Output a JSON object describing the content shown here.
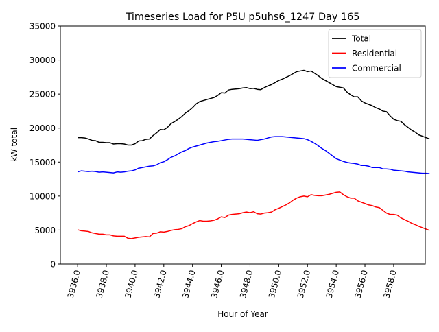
{
  "chart_data": {
    "type": "line",
    "title": "Timeseries Load for P5U p5uhs6_1247  Day 165",
    "xlabel": "Hour of Year",
    "ylabel": "kW total",
    "xlim": [
      3934.8,
      3960.2
    ],
    "ylim": [
      0,
      35000
    ],
    "xticks": [
      3936,
      3938,
      3940,
      3942,
      3944,
      3946,
      3948,
      3950,
      3952,
      3954,
      3956,
      3958
    ],
    "xtick_labels": [
      "3936.0",
      "3938.0",
      "3940.0",
      "3942.0",
      "3944.0",
      "3946.0",
      "3948.0",
      "3950.0",
      "3952.0",
      "3954.0",
      "3956.0",
      "3958.0"
    ],
    "yticks": [
      0,
      5000,
      10000,
      15000,
      20000,
      25000,
      30000,
      35000
    ],
    "ytick_labels": [
      "0",
      "5000",
      "10000",
      "15000",
      "20000",
      "25000",
      "30000",
      "35000"
    ],
    "grid": false,
    "legend_position": "top-right",
    "x_start": 3936,
    "x_step": 0.25,
    "series": [
      {
        "name": "Total",
        "color": "#000000",
        "values": [
          18600,
          18600,
          18550,
          18400,
          18200,
          18150,
          17900,
          17900,
          17850,
          17850,
          17650,
          17700,
          17700,
          17650,
          17500,
          17500,
          17700,
          18100,
          18150,
          18350,
          18400,
          18900,
          19300,
          19800,
          19750,
          20100,
          20650,
          20950,
          21300,
          21700,
          22200,
          22550,
          23000,
          23550,
          23900,
          24050,
          24200,
          24350,
          24500,
          24800,
          25200,
          25150,
          25600,
          25700,
          25750,
          25800,
          25900,
          25950,
          25800,
          25850,
          25700,
          25650,
          25950,
          26200,
          26400,
          26700,
          27000,
          27200,
          27450,
          27700,
          28000,
          28300,
          28400,
          28500,
          28300,
          28400,
          28050,
          27700,
          27300,
          27000,
          26700,
          26400,
          26100,
          26000,
          25900,
          25300,
          24900,
          24600,
          24600,
          24000,
          23700,
          23500,
          23300,
          23000,
          22800,
          22500,
          22400,
          21800,
          21300,
          21100,
          21000,
          20500,
          20100,
          19700,
          19400,
          19000,
          18800,
          18600,
          18400
        ]
      },
      {
        "name": "Residential",
        "color": "#ff0000",
        "values": [
          5050,
          4900,
          4850,
          4800,
          4600,
          4500,
          4400,
          4400,
          4300,
          4300,
          4150,
          4100,
          4100,
          4100,
          3800,
          3750,
          3850,
          3950,
          4000,
          4050,
          4000,
          4500,
          4550,
          4750,
          4700,
          4800,
          4950,
          5050,
          5100,
          5200,
          5500,
          5650,
          5950,
          6200,
          6400,
          6300,
          6300,
          6350,
          6450,
          6650,
          6950,
          6850,
          7200,
          7300,
          7350,
          7400,
          7550,
          7650,
          7550,
          7700,
          7400,
          7350,
          7500,
          7550,
          7650,
          8000,
          8200,
          8450,
          8700,
          9000,
          9400,
          9700,
          9900,
          10000,
          9900,
          10200,
          10100,
          10050,
          10050,
          10150,
          10250,
          10400,
          10550,
          10600,
          10200,
          9900,
          9700,
          9700,
          9300,
          9100,
          8900,
          8700,
          8600,
          8400,
          8300,
          7900,
          7500,
          7300,
          7300,
          7200,
          6800,
          6550,
          6300,
          6000,
          5800,
          5550,
          5350,
          5150,
          4950
        ]
      },
      {
        "name": "Commercial",
        "color": "#0000ff",
        "values": [
          13550,
          13700,
          13650,
          13600,
          13650,
          13600,
          13500,
          13550,
          13500,
          13450,
          13400,
          13550,
          13500,
          13550,
          13650,
          13700,
          13850,
          14100,
          14200,
          14300,
          14400,
          14450,
          14600,
          14900,
          15050,
          15350,
          15700,
          15900,
          16200,
          16500,
          16700,
          17000,
          17200,
          17350,
          17500,
          17650,
          17800,
          17900,
          18000,
          18050,
          18150,
          18250,
          18350,
          18400,
          18400,
          18400,
          18400,
          18350,
          18300,
          18250,
          18200,
          18300,
          18400,
          18550,
          18700,
          18750,
          18750,
          18750,
          18700,
          18650,
          18600,
          18550,
          18500,
          18450,
          18300,
          18050,
          17750,
          17400,
          17000,
          16700,
          16300,
          15900,
          15500,
          15300,
          15100,
          14950,
          14850,
          14800,
          14700,
          14500,
          14500,
          14400,
          14200,
          14200,
          14200,
          14000,
          14000,
          13950,
          13800,
          13750,
          13700,
          13650,
          13550,
          13500,
          13450,
          13400,
          13350,
          13350,
          13300
        ]
      }
    ]
  }
}
